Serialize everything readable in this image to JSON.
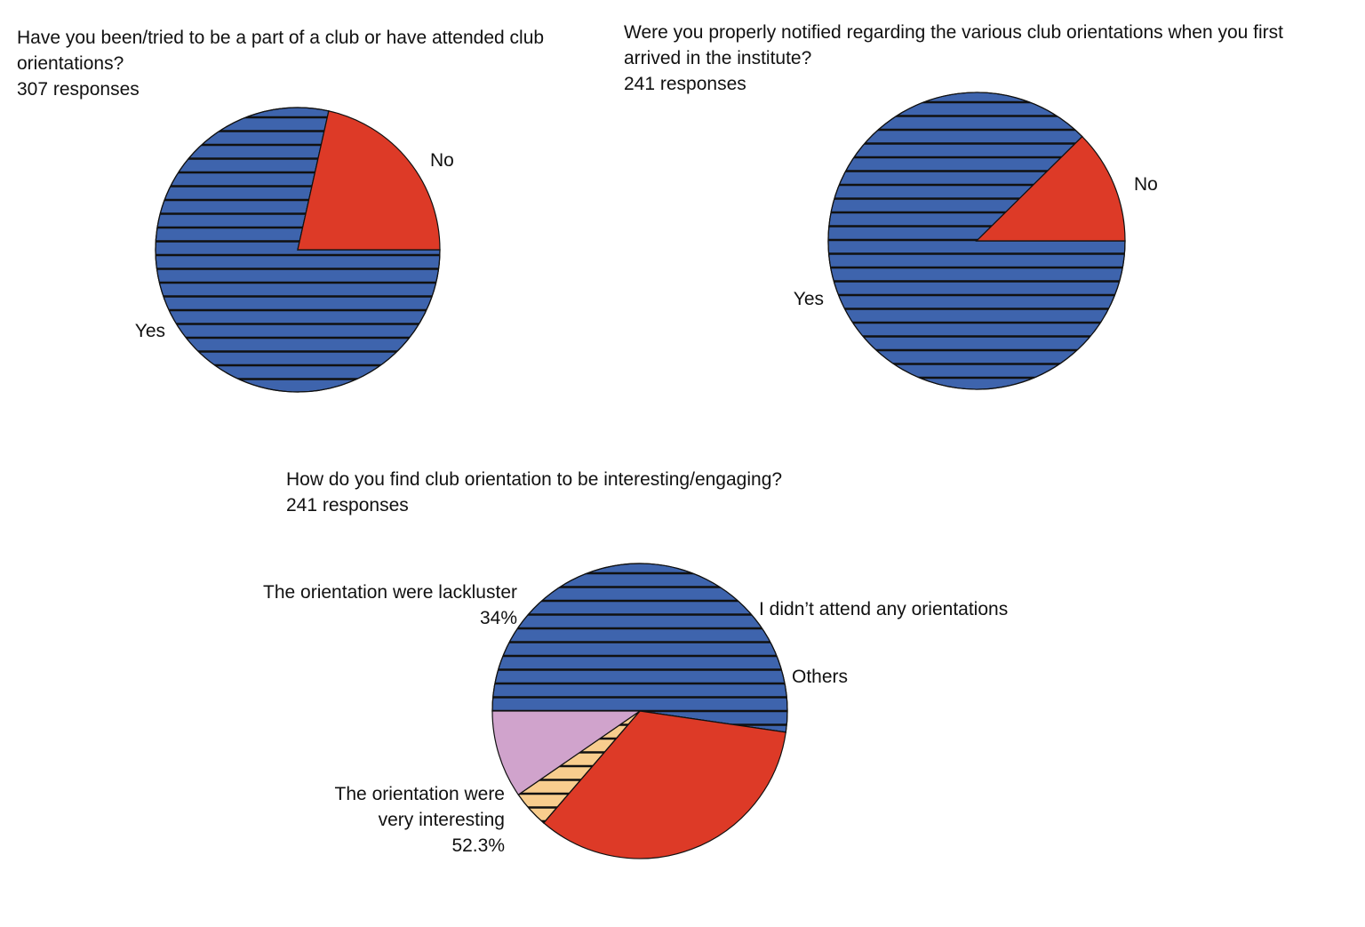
{
  "chart_data": [
    {
      "type": "pie",
      "title": "Have you been/tried to be a part of a club or have attended club orientations?",
      "subtitle": "307 responses",
      "slices": [
        {
          "label": "Yes",
          "percent_label": "",
          "value": 78.5,
          "color": "#3e64ad",
          "pattern": "horizontal-lines"
        },
        {
          "label": "No",
          "percent_label": "",
          "value": 21.5,
          "color": "#dd3a27",
          "pattern": "none"
        }
      ]
    },
    {
      "type": "pie",
      "title": "Were you properly notified regarding the various club orientations when you first arrived in the institute?",
      "subtitle": "241 responses",
      "slices": [
        {
          "label": "Yes",
          "percent_label": "",
          "value": 87.6,
          "color": "#3e64ad",
          "pattern": "horizontal-lines"
        },
        {
          "label": "No",
          "percent_label": "",
          "value": 12.4,
          "color": "#dd3a27",
          "pattern": "none"
        }
      ]
    },
    {
      "type": "pie",
      "title": "How do you find club orientation to be interesting/engaging?",
      "subtitle": "241 responses",
      "slices": [
        {
          "label": "The orientation were very interesting",
          "label_lines": [
            "The orientation were",
            "very interesting"
          ],
          "percent_label": "52.3%",
          "value": 52.3,
          "color": "#3e64ad",
          "pattern": "horizontal-lines"
        },
        {
          "label": "The orientation were lackluster",
          "label_lines": [
            "The orientation were lackluster"
          ],
          "percent_label": "34%",
          "value": 34.0,
          "color": "#dd3a27",
          "pattern": "none"
        },
        {
          "label": "I didn’t attend any orientations",
          "label_lines": [
            "I didn’t attend any orientations"
          ],
          "percent_label": "",
          "value": 4.1,
          "color": "#f8cd8e",
          "pattern": "horizontal-lines"
        },
        {
          "label": "Others",
          "label_lines": [
            "Others"
          ],
          "percent_label": "",
          "value": 9.6,
          "color": "#d0a3cc",
          "pattern": "none"
        }
      ]
    }
  ]
}
